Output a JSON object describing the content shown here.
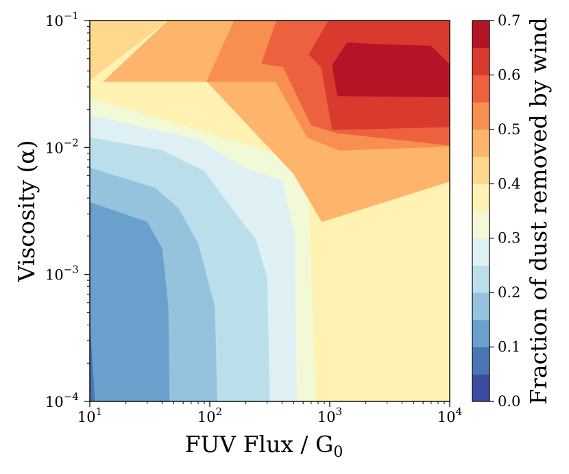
{
  "chart_data": {
    "type": "contour",
    "xlabel": "FUV Flux / G",
    "xlabel_sub": "0",
    "ylabel": "Viscosity (α)",
    "colorbar_label": "Fraction of dust removed by wind",
    "x_scale": "log",
    "y_scale": "log",
    "xlim": [
      10,
      10000
    ],
    "ylim": [
      0.0001,
      0.1
    ],
    "x_ticks": [
      {
        "value": 10,
        "base": "10",
        "exp": "1"
      },
      {
        "value": 100,
        "base": "10",
        "exp": "2"
      },
      {
        "value": 1000,
        "base": "10",
        "exp": "3"
      },
      {
        "value": 10000,
        "base": "10",
        "exp": "4"
      }
    ],
    "y_ticks": [
      {
        "value": 0.0001,
        "base": "10",
        "exp": "−4"
      },
      {
        "value": 0.001,
        "base": "10",
        "exp": "−3"
      },
      {
        "value": 0.01,
        "base": "10",
        "exp": "−2"
      },
      {
        "value": 0.1,
        "base": "10",
        "exp": "−1"
      }
    ],
    "levels": [
      0.0,
      0.05,
      0.1,
      0.15,
      0.2,
      0.25,
      0.3,
      0.35,
      0.4,
      0.45,
      0.5,
      0.55,
      0.6,
      0.65,
      0.7
    ],
    "level_colors": [
      "#3a4ca0",
      "#4a76b4",
      "#6aa0cb",
      "#95c3de",
      "#badfeb",
      "#dff0f5",
      "#f2f9d6",
      "#fff2b2",
      "#fed98d",
      "#fdb56b",
      "#f98e51",
      "#ed613f",
      "#d93a2e",
      "#b51426"
    ],
    "colorbar_ticks": [
      "0.0",
      "0.1",
      "0.2",
      "0.3",
      "0.4",
      "0.5",
      "0.6",
      "0.7"
    ],
    "regions": [
      {
        "level": 0.4,
        "points": [
          [
            10,
            0.1
          ],
          [
            10000,
            0.1
          ],
          [
            10000,
            0.0001
          ],
          [
            10,
            0.0001
          ]
        ]
      },
      {
        "level": 0.35,
        "points": [
          [
            10,
            0.0001
          ],
          [
            10,
            0.0335
          ],
          [
            45,
            0.1
          ],
          [
            10000,
            0.1
          ],
          [
            10000,
            0.0001
          ]
        ]
      },
      {
        "level": 0.3,
        "points": [
          [
            10,
            0.0001
          ],
          [
            10,
            0.0245
          ],
          [
            650,
            0.0075
          ],
          [
            760,
            0.0001
          ]
        ]
      },
      {
        "level": 0.25,
        "points": [
          [
            10,
            0.0001
          ],
          [
            10,
            0.018
          ],
          [
            80,
            0.0115
          ],
          [
            200,
            0.0068
          ],
          [
            400,
            0.0055
          ],
          [
            510,
            0.0021
          ],
          [
            530,
            0.0001
          ]
        ]
      },
      {
        "level": 0.2,
        "points": [
          [
            10,
            0.0001
          ],
          [
            10,
            0.012
          ],
          [
            40,
            0.0095
          ],
          [
            90,
            0.0065
          ],
          [
            160,
            0.0031
          ],
          [
            240,
            0.0019
          ],
          [
            300,
            0.00095
          ],
          [
            315,
            0.0001
          ]
        ]
      },
      {
        "level": 0.15,
        "points": [
          [
            10,
            0.0001
          ],
          [
            10,
            0.0069
          ],
          [
            35,
            0.0048
          ],
          [
            55,
            0.0033
          ],
          [
            80,
            0.00175
          ],
          [
            110,
            0.00055
          ],
          [
            115,
            0.0001
          ]
        ]
      },
      {
        "level": 0.1,
        "points": [
          [
            10,
            0.0001
          ],
          [
            10,
            0.0037
          ],
          [
            30,
            0.0026
          ],
          [
            40,
            0.0016
          ],
          [
            45,
            0.00055
          ],
          [
            46,
            0.0001
          ]
        ]
      },
      {
        "level": 0.05,
        "points": [
          [
            10,
            0.0001
          ],
          [
            10,
            0.0004
          ],
          [
            11,
            0.0001
          ]
        ]
      },
      {
        "level": 0.45,
        "points": [
          [
            45,
            0.1
          ],
          [
            13,
            0.033
          ],
          [
            95,
            0.033
          ],
          [
            500,
            0.0062
          ],
          [
            860,
            0.0026
          ],
          [
            10000,
            0.0054
          ],
          [
            10000,
            0.1
          ]
        ]
      },
      {
        "level": 0.5,
        "points": [
          [
            160,
            0.1
          ],
          [
            94,
            0.033
          ],
          [
            355,
            0.033
          ],
          [
            650,
            0.012
          ],
          [
            1200,
            0.0095
          ],
          [
            10000,
            0.0102
          ],
          [
            10000,
            0.1
          ]
        ]
      },
      {
        "level": 0.55,
        "points": [
          [
            360,
            0.1
          ],
          [
            270,
            0.046
          ],
          [
            410,
            0.043
          ],
          [
            700,
            0.015
          ],
          [
            1150,
            0.013
          ],
          [
            10000,
            0.0104
          ],
          [
            10000,
            0.1
          ]
        ]
      },
      {
        "level": 0.6,
        "points": [
          [
            980,
            0.1
          ],
          [
            670,
            0.054
          ],
          [
            850,
            0.043
          ],
          [
            1050,
            0.0138
          ],
          [
            10000,
            0.0145
          ],
          [
            10000,
            0.1
          ]
        ]
      },
      {
        "level": 0.65,
        "points": [
          [
            1050,
            0.0445
          ],
          [
            1160,
            0.0255
          ],
          [
            10000,
            0.025
          ],
          [
            10000,
            0.045
          ],
          [
            7000,
            0.063
          ],
          [
            2500,
            0.065
          ],
          [
            1400,
            0.067
          ]
        ]
      }
    ]
  }
}
